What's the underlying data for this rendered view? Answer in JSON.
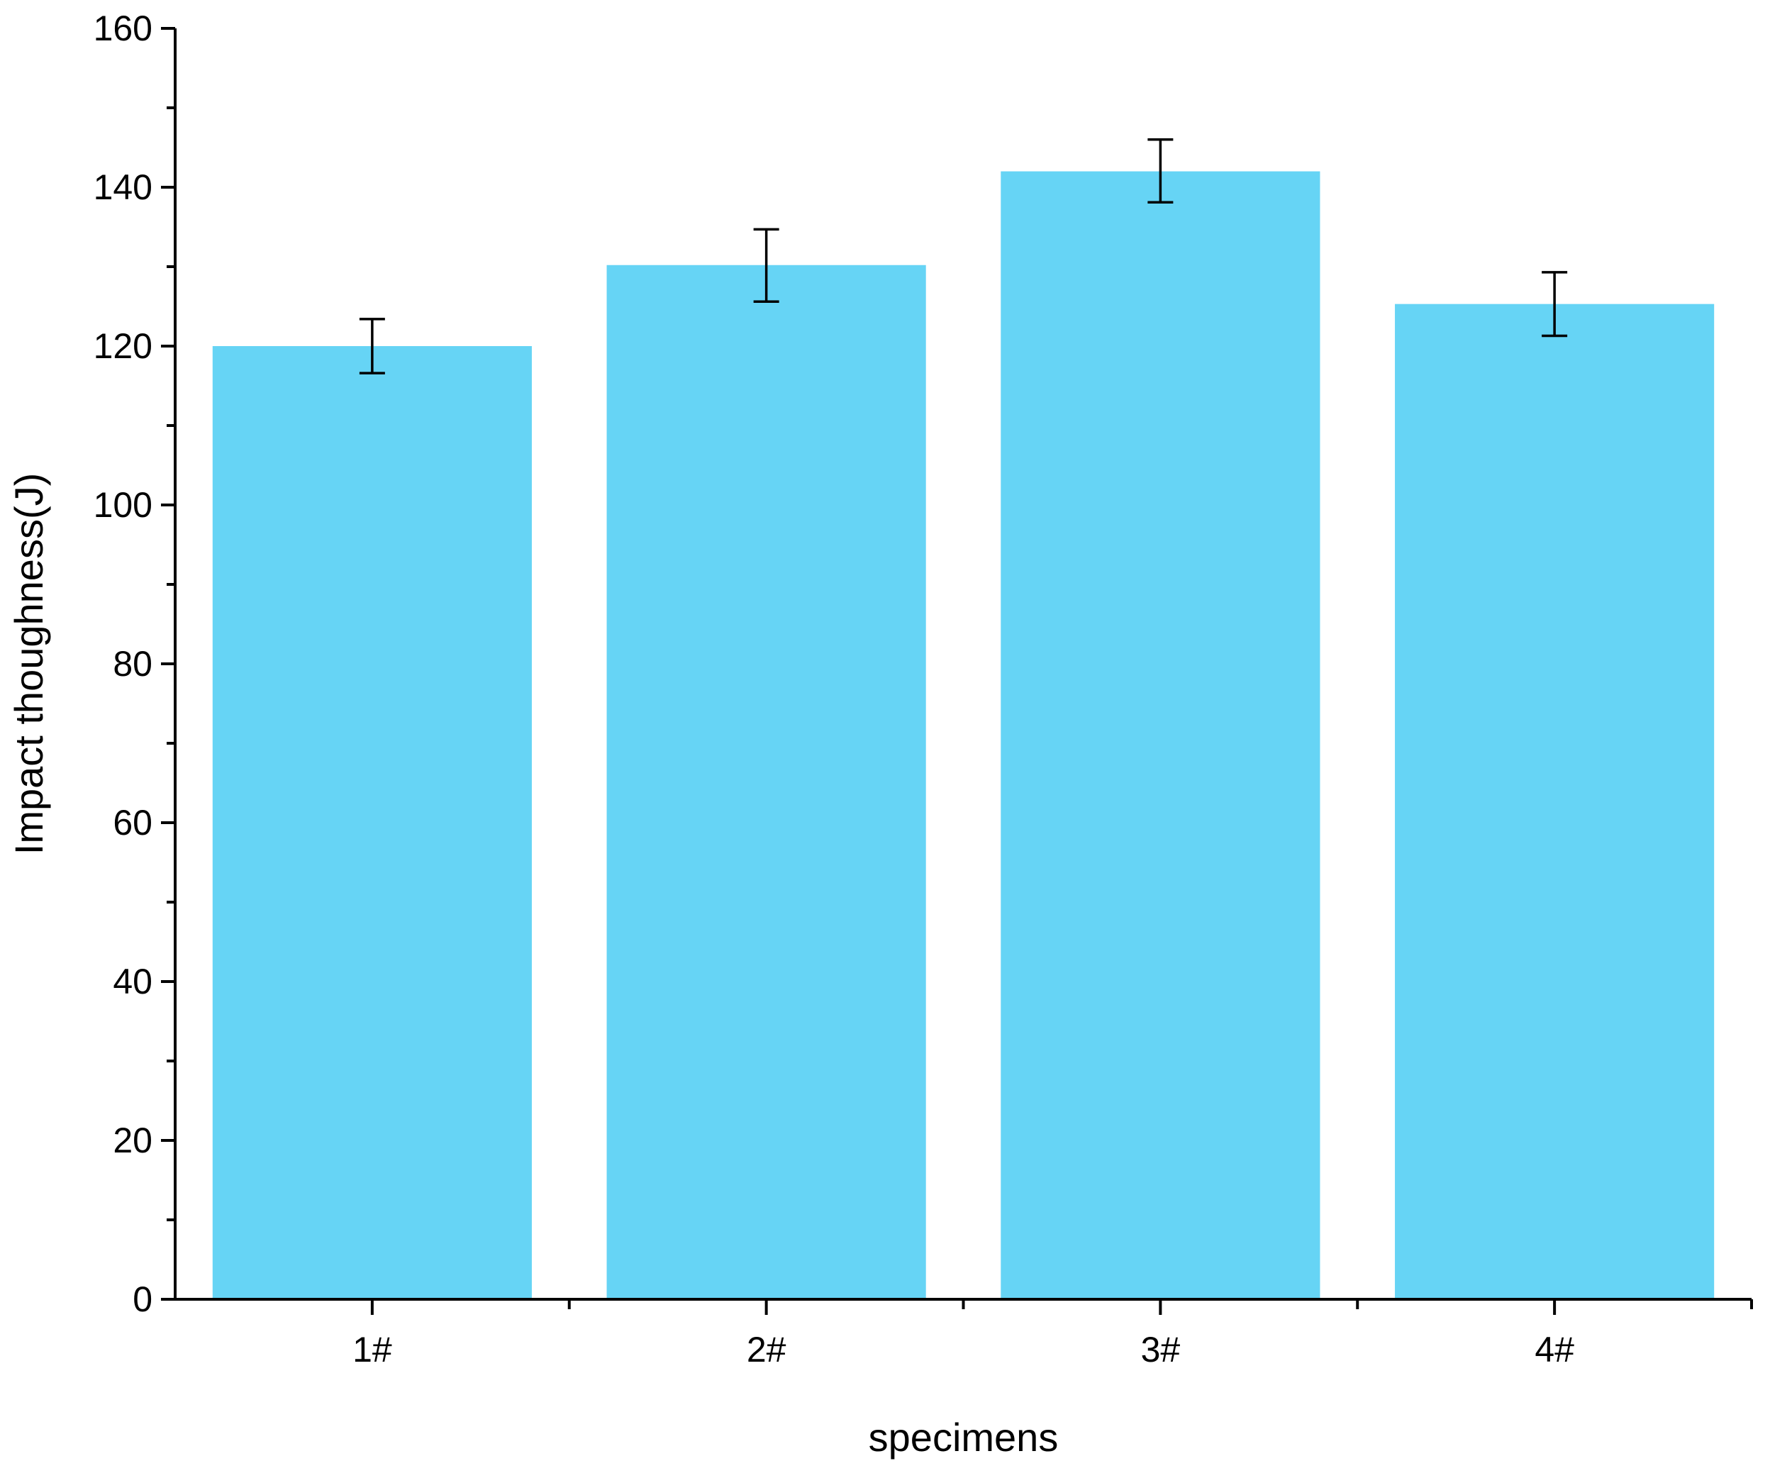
{
  "chart_data": {
    "type": "bar",
    "title": "",
    "xlabel": "specimens",
    "ylabel": "Impact thoughness(J)",
    "categories": [
      "1#",
      "2#",
      "3#",
      "4#"
    ],
    "values": [
      120,
      130.2,
      142,
      125.3
    ],
    "error_high": [
      123.4,
      134.7,
      146,
      129.3
    ],
    "error_low": [
      116.6,
      125.6,
      138.1,
      121.3
    ],
    "ylim": [
      0,
      160
    ],
    "yticks": [
      "0",
      "20",
      "40",
      "60",
      "80",
      "100",
      "120",
      "140",
      "160"
    ],
    "grid": false,
    "legend": "none",
    "bar_color": "#66d4f5",
    "axis_color": "#000000"
  }
}
